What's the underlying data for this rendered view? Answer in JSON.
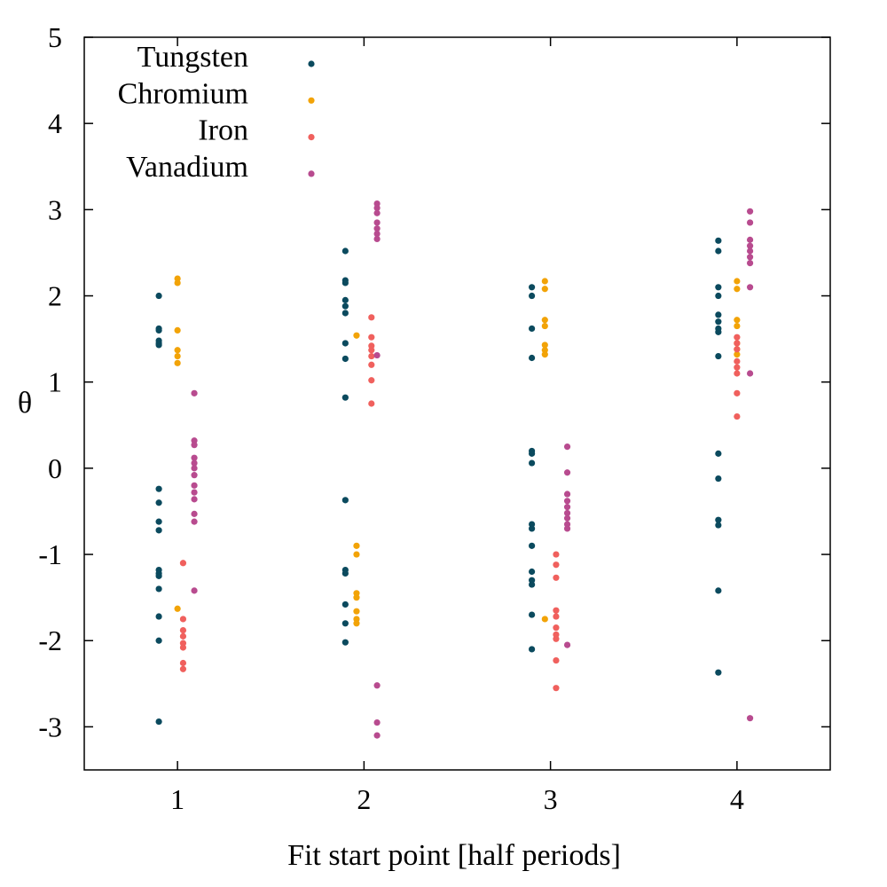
{
  "chart_data": {
    "type": "scatter",
    "xlabel": "Fit start point [half periods]",
    "ylabel": "θ",
    "xlim": [
      0.5,
      4.5
    ],
    "ylim": [
      -3.5,
      5
    ],
    "xticks": [
      1,
      2,
      3,
      4
    ],
    "xtick_labels": [
      "1",
      "2",
      "3",
      "4"
    ],
    "yticks": [
      -3,
      -2,
      -1,
      0,
      1,
      2,
      3,
      4,
      5
    ],
    "ytick_labels": [
      "-3",
      "-2",
      "-1",
      "0",
      "1",
      "2",
      "3",
      "4",
      "5"
    ],
    "grid": false,
    "legend_position": "top-left",
    "series": [
      {
        "name": "Tungsten",
        "color": "#0b4a5e",
        "points": [
          [
            0.9,
            2.0
          ],
          [
            0.9,
            1.62
          ],
          [
            0.9,
            1.6
          ],
          [
            0.9,
            1.48
          ],
          [
            0.9,
            1.45
          ],
          [
            0.9,
            1.43
          ],
          [
            0.9,
            -0.24
          ],
          [
            0.9,
            -0.4
          ],
          [
            0.9,
            -0.62
          ],
          [
            0.9,
            -0.72
          ],
          [
            0.9,
            -1.18
          ],
          [
            0.9,
            -1.22
          ],
          [
            0.9,
            -1.25
          ],
          [
            0.9,
            -1.4
          ],
          [
            0.9,
            -1.72
          ],
          [
            0.9,
            -2.0
          ],
          [
            0.9,
            -2.94
          ],
          [
            1.9,
            2.52
          ],
          [
            1.9,
            2.18
          ],
          [
            1.9,
            2.15
          ],
          [
            1.9,
            1.95
          ],
          [
            1.9,
            1.88
          ],
          [
            1.9,
            1.8
          ],
          [
            1.9,
            1.45
          ],
          [
            1.9,
            1.27
          ],
          [
            1.9,
            0.82
          ],
          [
            1.9,
            -0.37
          ],
          [
            1.9,
            -1.18
          ],
          [
            1.9,
            -1.22
          ],
          [
            1.9,
            -1.58
          ],
          [
            1.9,
            -1.8
          ],
          [
            1.9,
            -2.02
          ],
          [
            2.9,
            2.1
          ],
          [
            2.9,
            2.0
          ],
          [
            2.9,
            1.62
          ],
          [
            2.9,
            1.28
          ],
          [
            2.9,
            0.2
          ],
          [
            2.9,
            0.17
          ],
          [
            2.9,
            0.06
          ],
          [
            2.9,
            -0.65
          ],
          [
            2.9,
            -0.7
          ],
          [
            2.9,
            -0.9
          ],
          [
            2.9,
            -1.2
          ],
          [
            2.9,
            -1.3
          ],
          [
            2.9,
            -1.35
          ],
          [
            2.9,
            -1.7
          ],
          [
            2.9,
            -2.1
          ],
          [
            3.9,
            2.64
          ],
          [
            3.9,
            2.52
          ],
          [
            3.9,
            2.1
          ],
          [
            3.9,
            2.0
          ],
          [
            3.9,
            1.78
          ],
          [
            3.9,
            1.7
          ],
          [
            3.9,
            1.62
          ],
          [
            3.9,
            1.58
          ],
          [
            3.9,
            1.3
          ],
          [
            3.9,
            0.17
          ],
          [
            3.9,
            -0.12
          ],
          [
            3.9,
            -0.6
          ],
          [
            3.9,
            -0.66
          ],
          [
            3.9,
            -1.42
          ],
          [
            3.9,
            -2.37
          ]
        ]
      },
      {
        "name": "Chromium",
        "color": "#f2a307",
        "points": [
          [
            1.0,
            2.2
          ],
          [
            1.0,
            2.15
          ],
          [
            1.0,
            1.6
          ],
          [
            1.0,
            1.37
          ],
          [
            1.0,
            1.3
          ],
          [
            1.0,
            1.22
          ],
          [
            1.0,
            -1.63
          ],
          [
            1.96,
            1.54
          ],
          [
            1.96,
            -0.9
          ],
          [
            1.96,
            -1.0
          ],
          [
            1.96,
            -1.45
          ],
          [
            1.96,
            -1.5
          ],
          [
            1.96,
            -1.66
          ],
          [
            1.96,
            -1.75
          ],
          [
            1.96,
            -1.8
          ],
          [
            2.97,
            2.17
          ],
          [
            2.97,
            2.08
          ],
          [
            2.97,
            1.72
          ],
          [
            2.97,
            1.65
          ],
          [
            2.97,
            1.43
          ],
          [
            2.97,
            1.37
          ],
          [
            2.97,
            1.32
          ],
          [
            2.97,
            -1.75
          ],
          [
            4.0,
            2.17
          ],
          [
            4.0,
            2.08
          ],
          [
            4.0,
            1.72
          ],
          [
            4.0,
            1.65
          ],
          [
            4.0,
            1.45
          ],
          [
            4.0,
            1.38
          ],
          [
            4.0,
            1.32
          ]
        ]
      },
      {
        "name": "Iron",
        "color": "#f0605d",
        "points": [
          [
            1.03,
            -1.1
          ],
          [
            1.03,
            -1.75
          ],
          [
            1.03,
            -1.88
          ],
          [
            1.03,
            -1.95
          ],
          [
            1.03,
            -2.03
          ],
          [
            1.03,
            -2.08
          ],
          [
            1.03,
            -2.26
          ],
          [
            1.03,
            -2.33
          ],
          [
            2.04,
            1.75
          ],
          [
            2.04,
            1.52
          ],
          [
            2.04,
            1.42
          ],
          [
            2.04,
            1.37
          ],
          [
            2.04,
            1.3
          ],
          [
            2.04,
            1.2
          ],
          [
            2.04,
            1.02
          ],
          [
            2.04,
            0.75
          ],
          [
            3.03,
            -1.0
          ],
          [
            3.03,
            -1.12
          ],
          [
            3.03,
            -1.27
          ],
          [
            3.03,
            -1.65
          ],
          [
            3.03,
            -1.72
          ],
          [
            3.03,
            -1.85
          ],
          [
            3.03,
            -1.93
          ],
          [
            3.03,
            -1.98
          ],
          [
            3.03,
            -2.23
          ],
          [
            3.03,
            -2.55
          ],
          [
            4.0,
            1.52
          ],
          [
            4.0,
            1.45
          ],
          [
            4.0,
            1.38
          ],
          [
            4.0,
            1.24
          ],
          [
            4.0,
            1.17
          ],
          [
            4.0,
            1.1
          ],
          [
            4.0,
            0.87
          ],
          [
            4.0,
            0.6
          ]
        ]
      },
      {
        "name": "Vanadium",
        "color": "#b84b8f",
        "points": [
          [
            1.09,
            0.87
          ],
          [
            1.09,
            0.32
          ],
          [
            1.09,
            0.27
          ],
          [
            1.09,
            0.12
          ],
          [
            1.09,
            0.06
          ],
          [
            1.09,
            0.0
          ],
          [
            1.09,
            -0.08
          ],
          [
            1.09,
            -0.2
          ],
          [
            1.09,
            -0.28
          ],
          [
            1.09,
            -0.36
          ],
          [
            1.09,
            -0.53
          ],
          [
            1.09,
            -0.62
          ],
          [
            1.09,
            -1.42
          ],
          [
            2.07,
            3.07
          ],
          [
            2.07,
            3.02
          ],
          [
            2.07,
            2.96
          ],
          [
            2.07,
            2.85
          ],
          [
            2.07,
            2.78
          ],
          [
            2.07,
            2.72
          ],
          [
            2.07,
            2.66
          ],
          [
            2.07,
            1.31
          ],
          [
            2.07,
            -2.52
          ],
          [
            2.07,
            -2.95
          ],
          [
            2.07,
            -3.1
          ],
          [
            3.09,
            0.25
          ],
          [
            3.09,
            -0.05
          ],
          [
            3.09,
            -0.3
          ],
          [
            3.09,
            -0.38
          ],
          [
            3.09,
            -0.45
          ],
          [
            3.09,
            -0.52
          ],
          [
            3.09,
            -0.58
          ],
          [
            3.09,
            -0.65
          ],
          [
            3.09,
            -0.7
          ],
          [
            3.09,
            -2.05
          ],
          [
            4.07,
            2.98
          ],
          [
            4.07,
            2.85
          ],
          [
            4.07,
            2.65
          ],
          [
            4.07,
            2.58
          ],
          [
            4.07,
            2.52
          ],
          [
            4.07,
            2.45
          ],
          [
            4.07,
            2.38
          ],
          [
            4.07,
            2.1
          ],
          [
            4.07,
            1.1
          ],
          [
            4.07,
            -2.9
          ]
        ]
      }
    ]
  }
}
